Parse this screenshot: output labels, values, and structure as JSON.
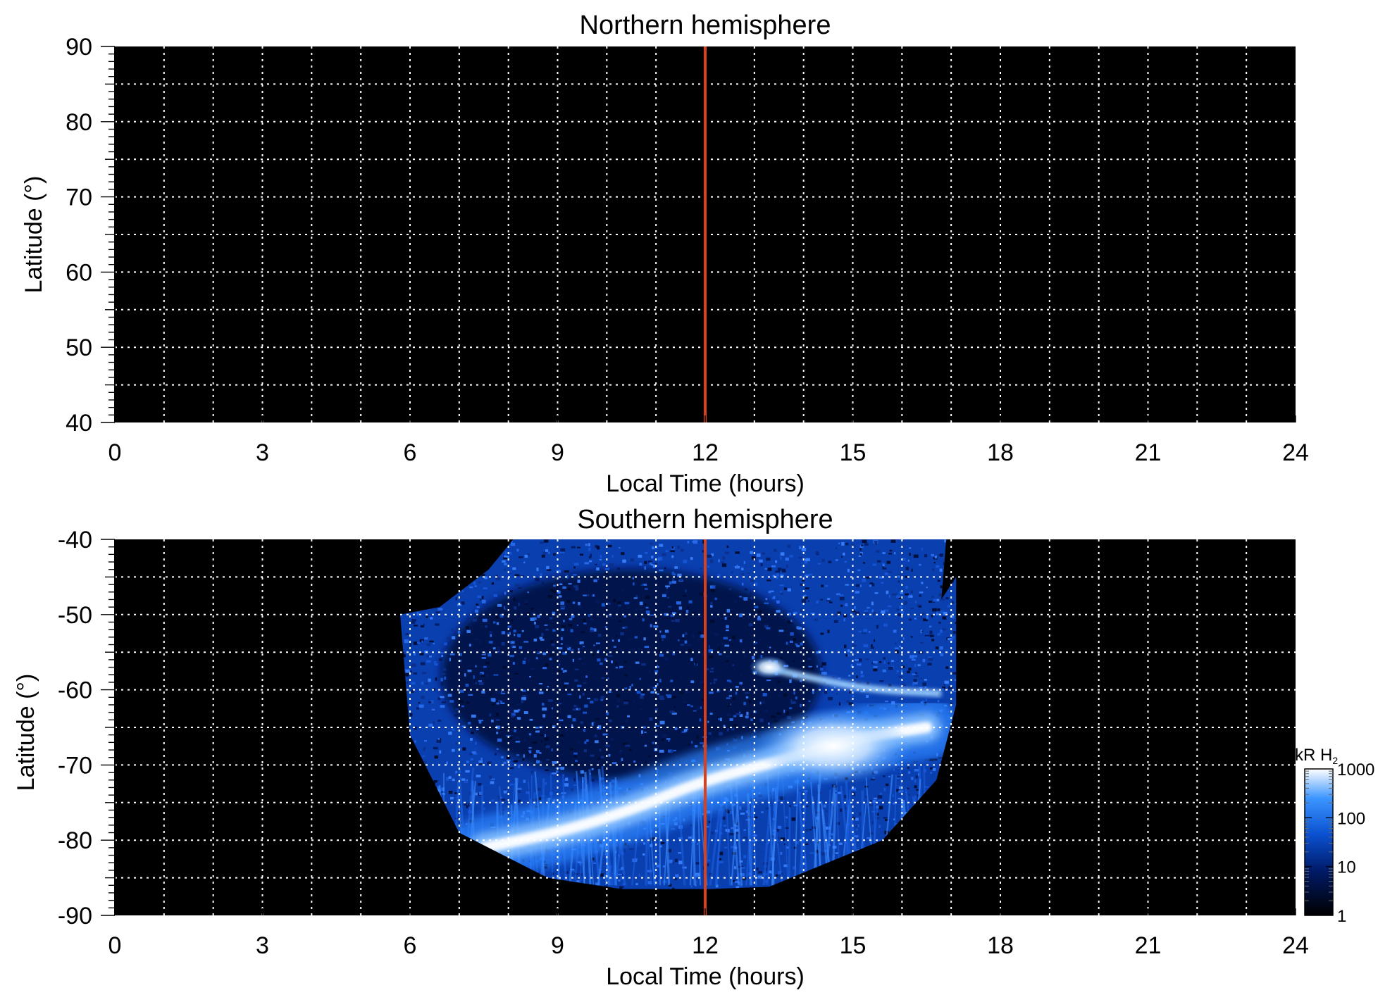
{
  "chart_data": [
    {
      "type": "heatmap",
      "title": "Northern hemisphere",
      "xlabel": "Local Time (hours)",
      "ylabel": "Latitude (°)",
      "xlim": [
        0,
        24
      ],
      "ylim": [
        40,
        90
      ],
      "xticks": [
        "0",
        "3",
        "6",
        "9",
        "12",
        "15",
        "18",
        "21",
        "24"
      ],
      "yticks": [
        "40",
        "50",
        "60",
        "70",
        "80",
        "90"
      ],
      "xtick_values": [
        0,
        3,
        6,
        9,
        12,
        15,
        18,
        21,
        24
      ],
      "ytick_values": [
        40,
        50,
        60,
        70,
        80,
        90
      ],
      "grid": true,
      "grid_x_step_hours": 1,
      "grid_y_step_deg": 5,
      "marker_line": {
        "x": 12,
        "color": "#d9401c"
      },
      "data": "no emission (black)"
    },
    {
      "type": "heatmap",
      "title": "Southern hemisphere",
      "xlabel": "Local Time (hours)",
      "ylabel": "Latitude (°)",
      "xlim": [
        0,
        24
      ],
      "ylim": [
        -90,
        -40
      ],
      "xticks": [
        "0",
        "3",
        "6",
        "9",
        "12",
        "15",
        "18",
        "21",
        "24"
      ],
      "yticks": [
        "-40",
        "-50",
        "-60",
        "-70",
        "-80",
        "-90"
      ],
      "xtick_values": [
        0,
        3,
        6,
        9,
        12,
        15,
        18,
        21,
        24
      ],
      "ytick_values": [
        -40,
        -50,
        -60,
        -70,
        -80,
        -90
      ],
      "grid": true,
      "grid_x_step_hours": 1,
      "grid_y_step_deg": 5,
      "marker_line": {
        "x": 12,
        "color": "#d9401c"
      },
      "coverage": {
        "lt_range": [
          5.8,
          17.1
        ],
        "lat_range": [
          -86.5,
          -40
        ]
      },
      "oval": {
        "lt": [
          7.5,
          9,
          10.5,
          12,
          13.5,
          15,
          16.5
        ],
        "lat": [
          -81,
          -79,
          -76,
          -72,
          -69.5,
          -66.5,
          -65
        ],
        "peak_kR": 1000
      },
      "spot": {
        "lt": 13.3,
        "lat": -57,
        "kR": 1000
      },
      "colorbar": {
        "label": "kR H",
        "label_subscript": "2",
        "scale": "log",
        "ticks": [
          "1",
          "10",
          "100",
          "1000"
        ],
        "tick_values": [
          1,
          10,
          100,
          1000
        ],
        "colors": [
          "#000000",
          "#001a66",
          "#0a50d0",
          "#3c96ff",
          "#ffffff"
        ]
      }
    }
  ]
}
